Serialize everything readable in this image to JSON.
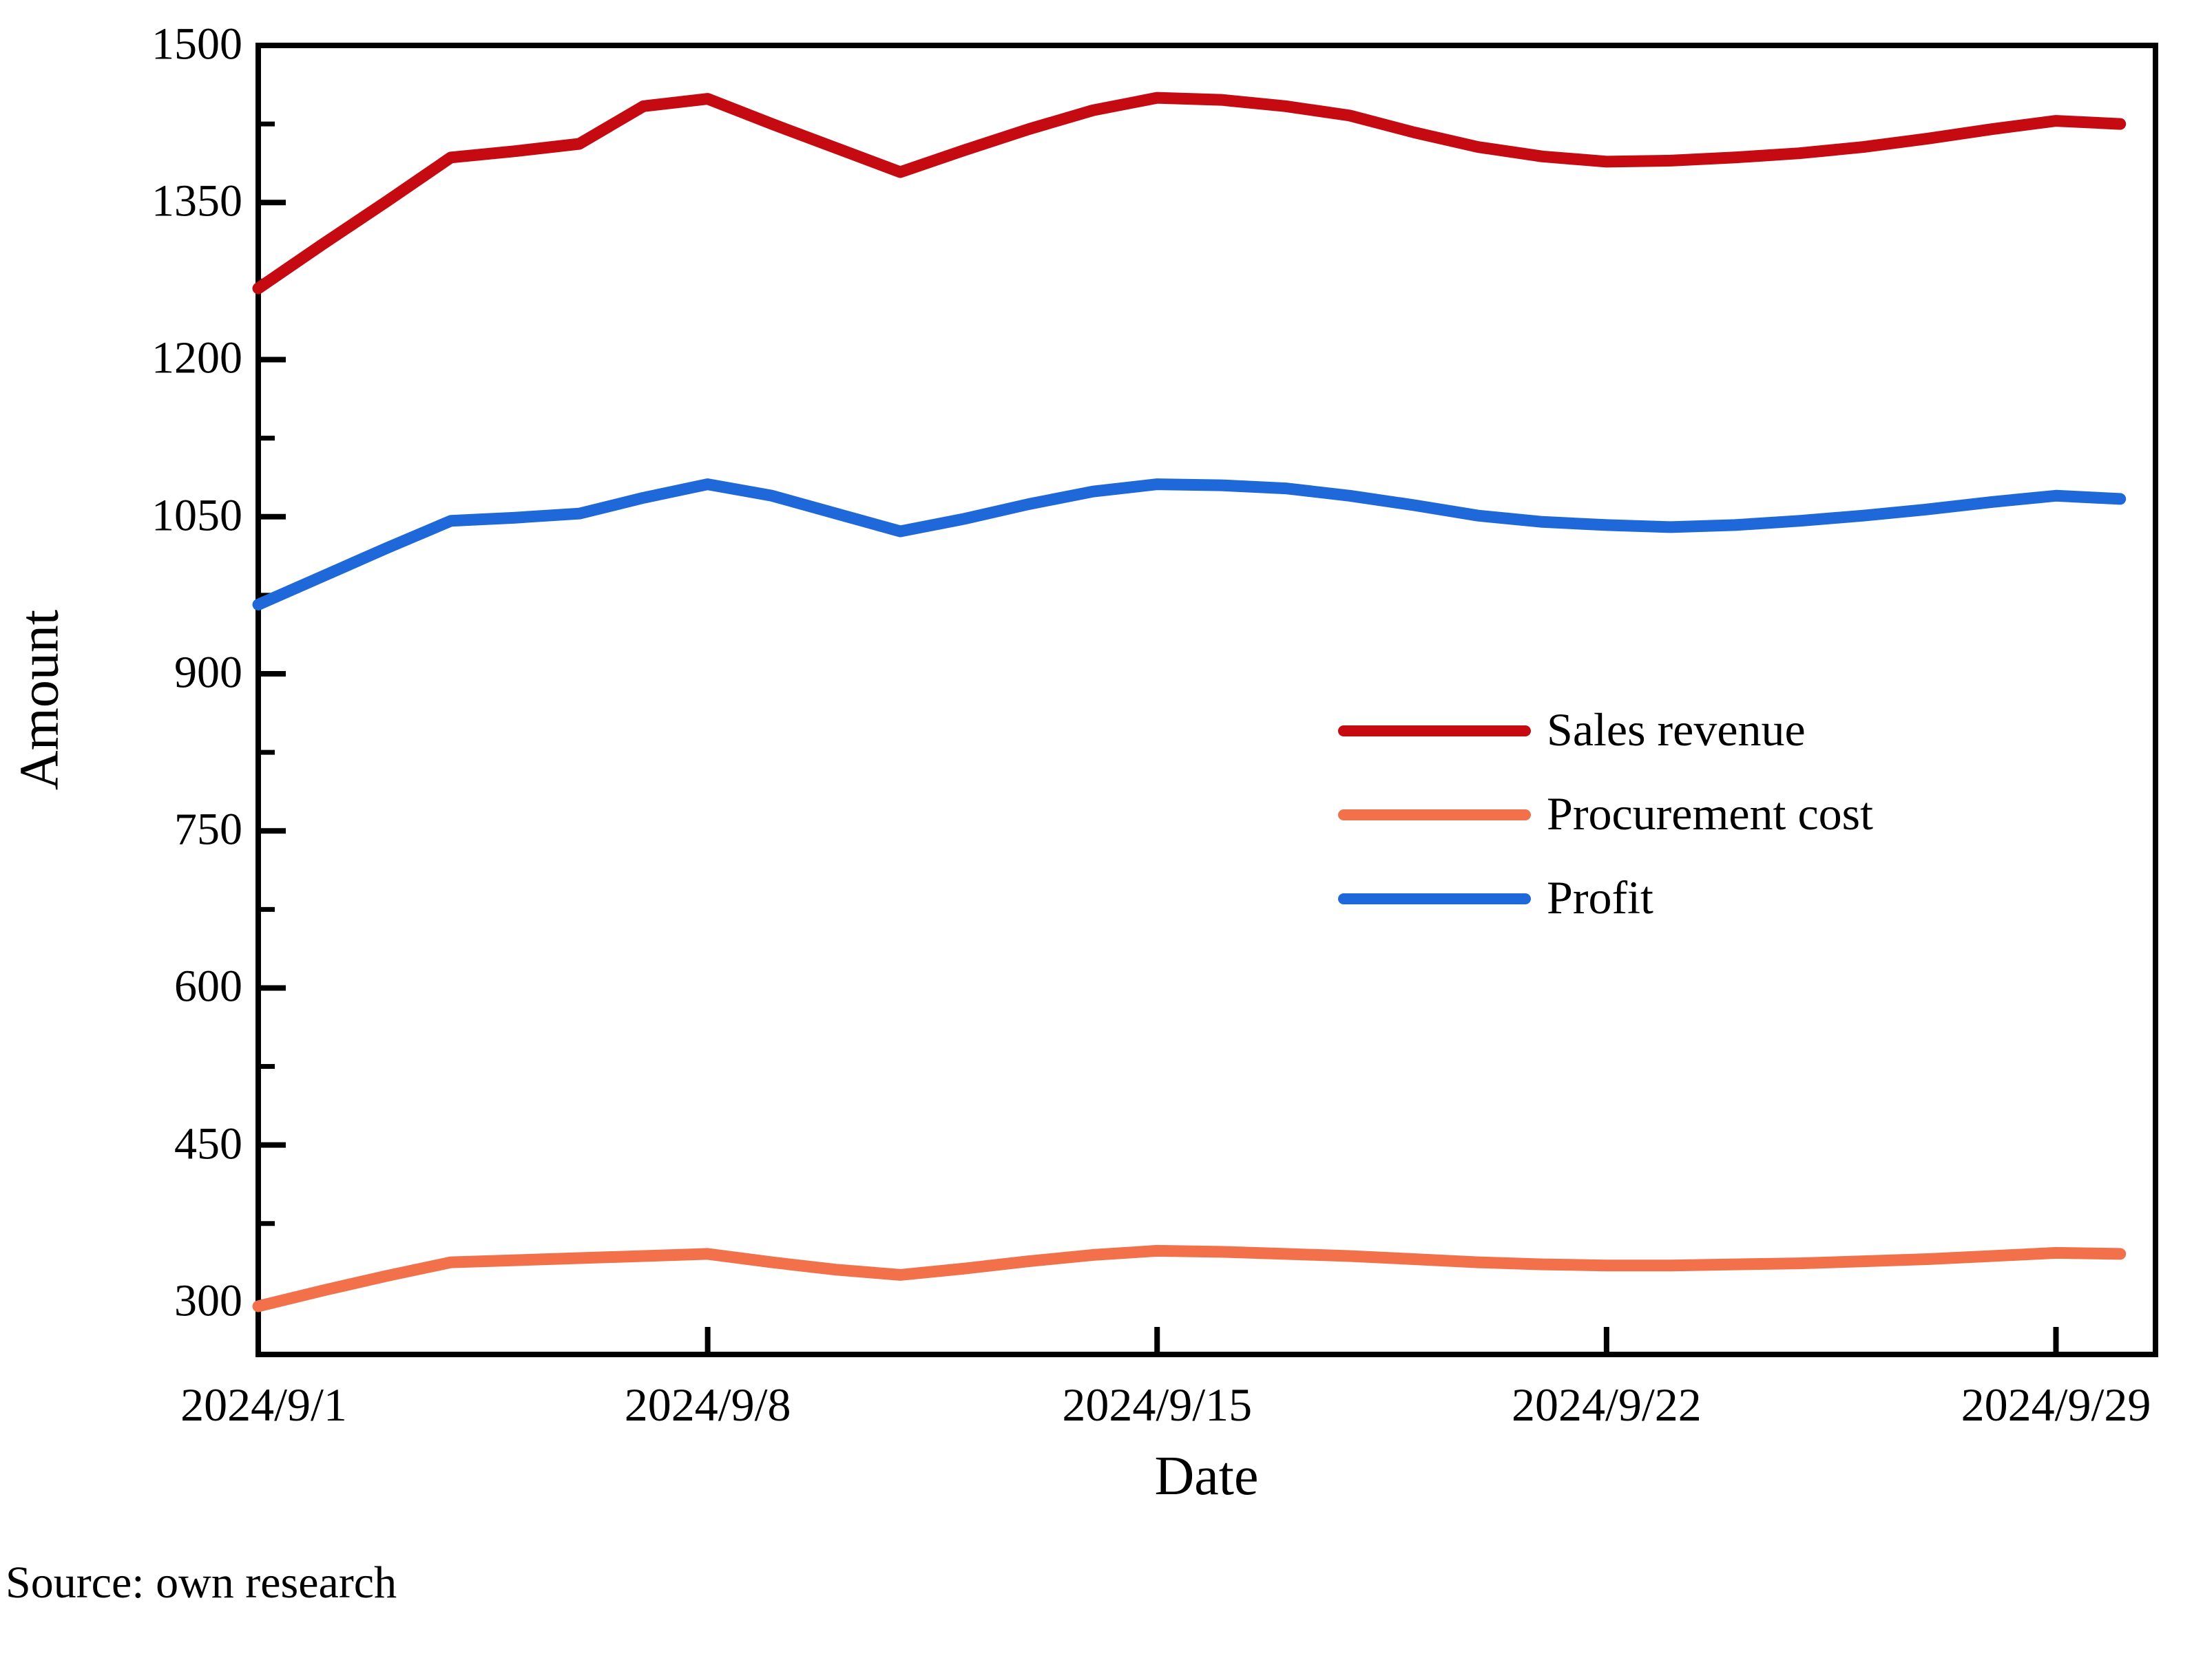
{
  "source_note": "Source: own research",
  "chart_data": {
    "type": "line",
    "title": "",
    "xlabel": "Date",
    "ylabel": "Amount",
    "grid": false,
    "legend_position": "center-right",
    "ylim": [
      250,
      1500
    ],
    "y_ticks": [
      300,
      450,
      600,
      750,
      900,
      1050,
      1200,
      1350,
      1500
    ],
    "y_minor_step": 75,
    "x_tick_labels": [
      "2024/9/1",
      "2024/9/8",
      "2024/9/15",
      "2024/9/22",
      "2024/9/29"
    ],
    "x_tick_days": [
      1,
      8,
      15,
      22,
      29
    ],
    "x": [
      "2024/9/1",
      "2024/9/2",
      "2024/9/3",
      "2024/9/4",
      "2024/9/5",
      "2024/9/6",
      "2024/9/7",
      "2024/9/8",
      "2024/9/9",
      "2024/9/10",
      "2024/9/11",
      "2024/9/12",
      "2024/9/13",
      "2024/9/14",
      "2024/9/15",
      "2024/9/16",
      "2024/9/17",
      "2024/9/18",
      "2024/9/19",
      "2024/9/20",
      "2024/9/21",
      "2024/9/22",
      "2024/9/23",
      "2024/9/24",
      "2024/9/25",
      "2024/9/26",
      "2024/9/27",
      "2024/9/28",
      "2024/9/29",
      "2024/9/30"
    ],
    "series": [
      {
        "name": "Sales revenue",
        "color": "#c60a12",
        "values": [
          1268,
          1310,
          1351,
          1393,
          1399,
          1406,
          1442,
          1449,
          1425,
          1402,
          1379,
          1400,
          1420,
          1438,
          1450,
          1448,
          1442,
          1433,
          1417,
          1403,
          1394,
          1389,
          1390,
          1393,
          1397,
          1403,
          1411,
          1420,
          1428,
          1425
        ]
      },
      {
        "name": "Procurement cost",
        "color": "#f2714b",
        "values": [
          296,
          311,
          325,
          338,
          340,
          342,
          344,
          346,
          338,
          331,
          326,
          332,
          339,
          345,
          349,
          348,
          346,
          344,
          341,
          338,
          336,
          335,
          335,
          336,
          337,
          339,
          341,
          344,
          347,
          346
        ]
      },
      {
        "name": "Profit",
        "color": "#1f68d9",
        "values": [
          966,
          993,
          1020,
          1046,
          1049,
          1053,
          1068,
          1081,
          1070,
          1053,
          1036,
          1048,
          1062,
          1074,
          1081,
          1080,
          1077,
          1070,
          1061,
          1051,
          1045,
          1042,
          1040,
          1042,
          1046,
          1051,
          1057,
          1064,
          1070,
          1067
        ]
      }
    ]
  }
}
